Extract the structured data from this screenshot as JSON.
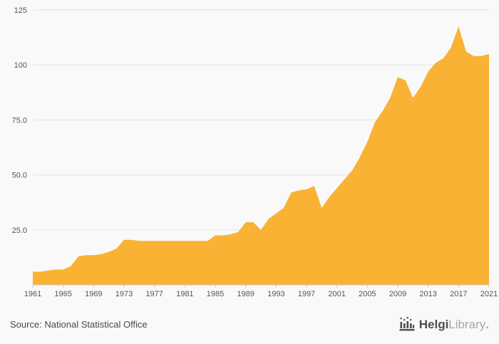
{
  "chart_data": {
    "type": "area",
    "title": "",
    "xlabel": "",
    "ylabel": "",
    "ylim": [
      0,
      125
    ],
    "grid": true,
    "area_color": "#f9b233",
    "grid_color": "#e3e3e3",
    "axis_color": "#c9c9c9",
    "tick_text_color": "#555555",
    "x": [
      1961,
      1962,
      1963,
      1964,
      1965,
      1966,
      1967,
      1968,
      1969,
      1970,
      1971,
      1972,
      1973,
      1974,
      1975,
      1976,
      1977,
      1978,
      1979,
      1980,
      1981,
      1982,
      1983,
      1984,
      1985,
      1986,
      1987,
      1988,
      1989,
      1990,
      1991,
      1992,
      1993,
      1994,
      1995,
      1996,
      1997,
      1998,
      1999,
      2000,
      2001,
      2002,
      2003,
      2004,
      2005,
      2006,
      2007,
      2008,
      2009,
      2010,
      2011,
      2012,
      2013,
      2014,
      2015,
      2016,
      2017,
      2018,
      2019,
      2020,
      2021
    ],
    "values": [
      6,
      6,
      6.5,
      7,
      7,
      8.5,
      13,
      13.5,
      13.5,
      14,
      15,
      16.5,
      20.5,
      20.5,
      20,
      20,
      20,
      20,
      20,
      20,
      20,
      20,
      20,
      20,
      22.5,
      22.5,
      23,
      24,
      28.5,
      28.5,
      25,
      30,
      32.5,
      35,
      42,
      43,
      43.5,
      45,
      35,
      40,
      44,
      48,
      52,
      58,
      65,
      74,
      79,
      85,
      94.5,
      93,
      85,
      90,
      97,
      101,
      103,
      108,
      117.5,
      106,
      104,
      104,
      105
    ],
    "yticks": [
      {
        "value": 25,
        "label": "25.0"
      },
      {
        "value": 50,
        "label": "50.0"
      },
      {
        "value": 75,
        "label": "75.0"
      },
      {
        "value": 100,
        "label": "100"
      },
      {
        "value": 125,
        "label": "125"
      }
    ],
    "xticks": [
      "1961",
      "1965",
      "1969",
      "1973",
      "1977",
      "1981",
      "1985",
      "1989",
      "1993",
      "1997",
      "2001",
      "2005",
      "2009",
      "2013",
      "2017",
      "2021"
    ],
    "legend_position": "none"
  },
  "footer": {
    "source": "Source: National Statistical Office",
    "brand": {
      "bold": "Helgi",
      "light": "Library",
      "dot": "."
    }
  }
}
